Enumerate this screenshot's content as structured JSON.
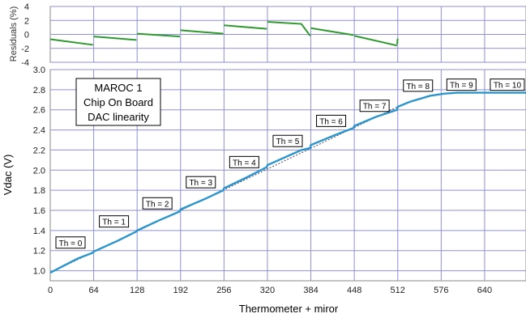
{
  "chart_data": [
    {
      "type": "line",
      "panel": "residuals",
      "ylabel": "Residuals (%)",
      "ylim": [
        -4,
        4
      ],
      "yticks": [
        -4,
        -2,
        0,
        2,
        4
      ],
      "xlim": [
        0,
        701
      ],
      "grid": true,
      "colors": {
        "series": "#2e9a2e",
        "grid": "#8f8fd6"
      },
      "segments": [
        {
          "x": [
            0,
            63
          ],
          "y": [
            -0.7,
            -1.5
          ]
        },
        {
          "x": [
            64,
            127
          ],
          "y": [
            -0.3,
            -0.8
          ]
        },
        {
          "x": [
            128,
            191
          ],
          "y": [
            0.1,
            -0.3
          ]
        },
        {
          "x": [
            192,
            255
          ],
          "y": [
            0.6,
            0.1
          ]
        },
        {
          "x": [
            256,
            319
          ],
          "y": [
            1.3,
            0.8
          ]
        },
        {
          "x": [
            320,
            370,
            383
          ],
          "y": [
            1.8,
            1.5,
            -0.2
          ]
        },
        {
          "x": [
            384,
            447
          ],
          "y": [
            0.9,
            -0.1
          ]
        },
        {
          "x": [
            448,
            511
          ],
          "y": [
            -0.2,
            -1.6
          ]
        },
        {
          "x": [
            511,
            512
          ],
          "y": [
            -1.4,
            -0.6
          ]
        }
      ]
    },
    {
      "type": "line",
      "panel": "main",
      "title": "",
      "xlabel": "Thermometer + miror",
      "ylabel": "Vdac (V)",
      "xlim": [
        0,
        701
      ],
      "ylim": [
        0.9,
        3.0
      ],
      "xticks": [
        0,
        64,
        128,
        192,
        256,
        320,
        384,
        448,
        512,
        576,
        640
      ],
      "yticks": [
        1.0,
        1.2,
        1.4,
        1.6,
        1.8,
        2.0,
        2.2,
        2.4,
        2.6,
        2.8,
        3.0
      ],
      "grid": true,
      "colors": {
        "series": "#2b95cc",
        "fit": "#444466",
        "grid": "#8f8fd6"
      },
      "series": [
        {
          "x": [
            0,
            20,
            40,
            63,
            64,
            100,
            127,
            128,
            160,
            191,
            192,
            230,
            255,
            256,
            290,
            319,
            320,
            360,
            370,
            383,
            384,
            420,
            447,
            448,
            480,
            511,
            512,
            530,
            560,
            580,
            600,
            640,
            701
          ],
          "values": [
            0.98,
            1.05,
            1.12,
            1.18,
            1.19,
            1.3,
            1.39,
            1.4,
            1.5,
            1.59,
            1.61,
            1.72,
            1.8,
            1.82,
            1.93,
            2.03,
            2.05,
            2.17,
            2.2,
            2.22,
            2.25,
            2.35,
            2.42,
            2.44,
            2.53,
            2.6,
            2.63,
            2.68,
            2.74,
            2.76,
            2.77,
            2.77,
            2.77
          ]
        }
      ],
      "fit_line": {
        "x": [
          0,
          512
        ],
        "values": [
          0.98,
          2.63
        ]
      },
      "annotations": [
        {
          "text": "Th = 0",
          "x": 0,
          "y": 1.28
        },
        {
          "text": "Th = 1",
          "x": 64,
          "y": 1.49
        },
        {
          "text": "Th = 2",
          "x": 128,
          "y": 1.67
        },
        {
          "text": "Th = 3",
          "x": 192,
          "y": 1.88
        },
        {
          "text": "Th = 4",
          "x": 256,
          "y": 2.08
        },
        {
          "text": "Th = 5",
          "x": 320,
          "y": 2.29
        },
        {
          "text": "Th = 6",
          "x": 384,
          "y": 2.49
        },
        {
          "text": "Th = 7",
          "x": 448,
          "y": 2.64
        },
        {
          "text": "Th = 8",
          "x": 512,
          "y": 2.84
        },
        {
          "text": "Th = 9",
          "x": 576,
          "y": 2.85
        },
        {
          "text": "Th = 10",
          "x": 640,
          "y": 2.85
        }
      ],
      "label_box": [
        "MAROC 1",
        "Chip On Board",
        "DAC linearity"
      ]
    }
  ]
}
